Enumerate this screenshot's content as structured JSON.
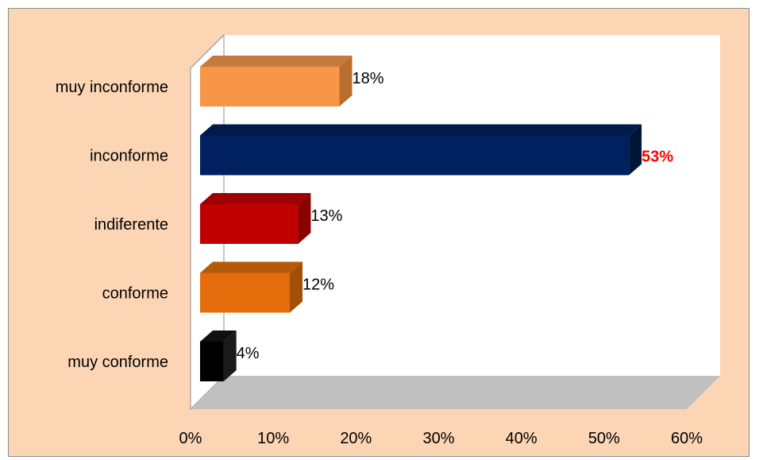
{
  "chart_data": {
    "type": "bar",
    "orientation": "horizontal",
    "categories": [
      "muy inconforme",
      "inconforme",
      "indiferente",
      "conforme",
      "muy conforme"
    ],
    "values": [
      18,
      53,
      13,
      12,
      4
    ],
    "value_labels": [
      "18%",
      "53%",
      "13%",
      "12%",
      "4%"
    ],
    "highlight_label_color": "#ff0000",
    "colors": [
      "#f79646",
      "#002060",
      "#c00000",
      "#e46c0a",
      "#000000"
    ],
    "side_colors": [
      "#b76e2f",
      "#001638",
      "#8b0000",
      "#a44f08",
      "#1a1a1a"
    ],
    "top_colors": [
      "#c77a3b",
      "#001a4a",
      "#9e0000",
      "#b45a0a",
      "#111111"
    ],
    "xlim": [
      0,
      60
    ],
    "xticks": [
      "0%",
      "10%",
      "20%",
      "30%",
      "40%",
      "50%",
      "60%"
    ],
    "xtick_values": [
      0,
      10,
      20,
      30,
      40,
      50,
      60
    ],
    "background_color": "#fcd5b4",
    "plot_color": "#ffffff",
    "floor_color": "#c0c0c0",
    "grid": false,
    "legend": "none",
    "title": "",
    "xlabel": "",
    "ylabel": ""
  }
}
